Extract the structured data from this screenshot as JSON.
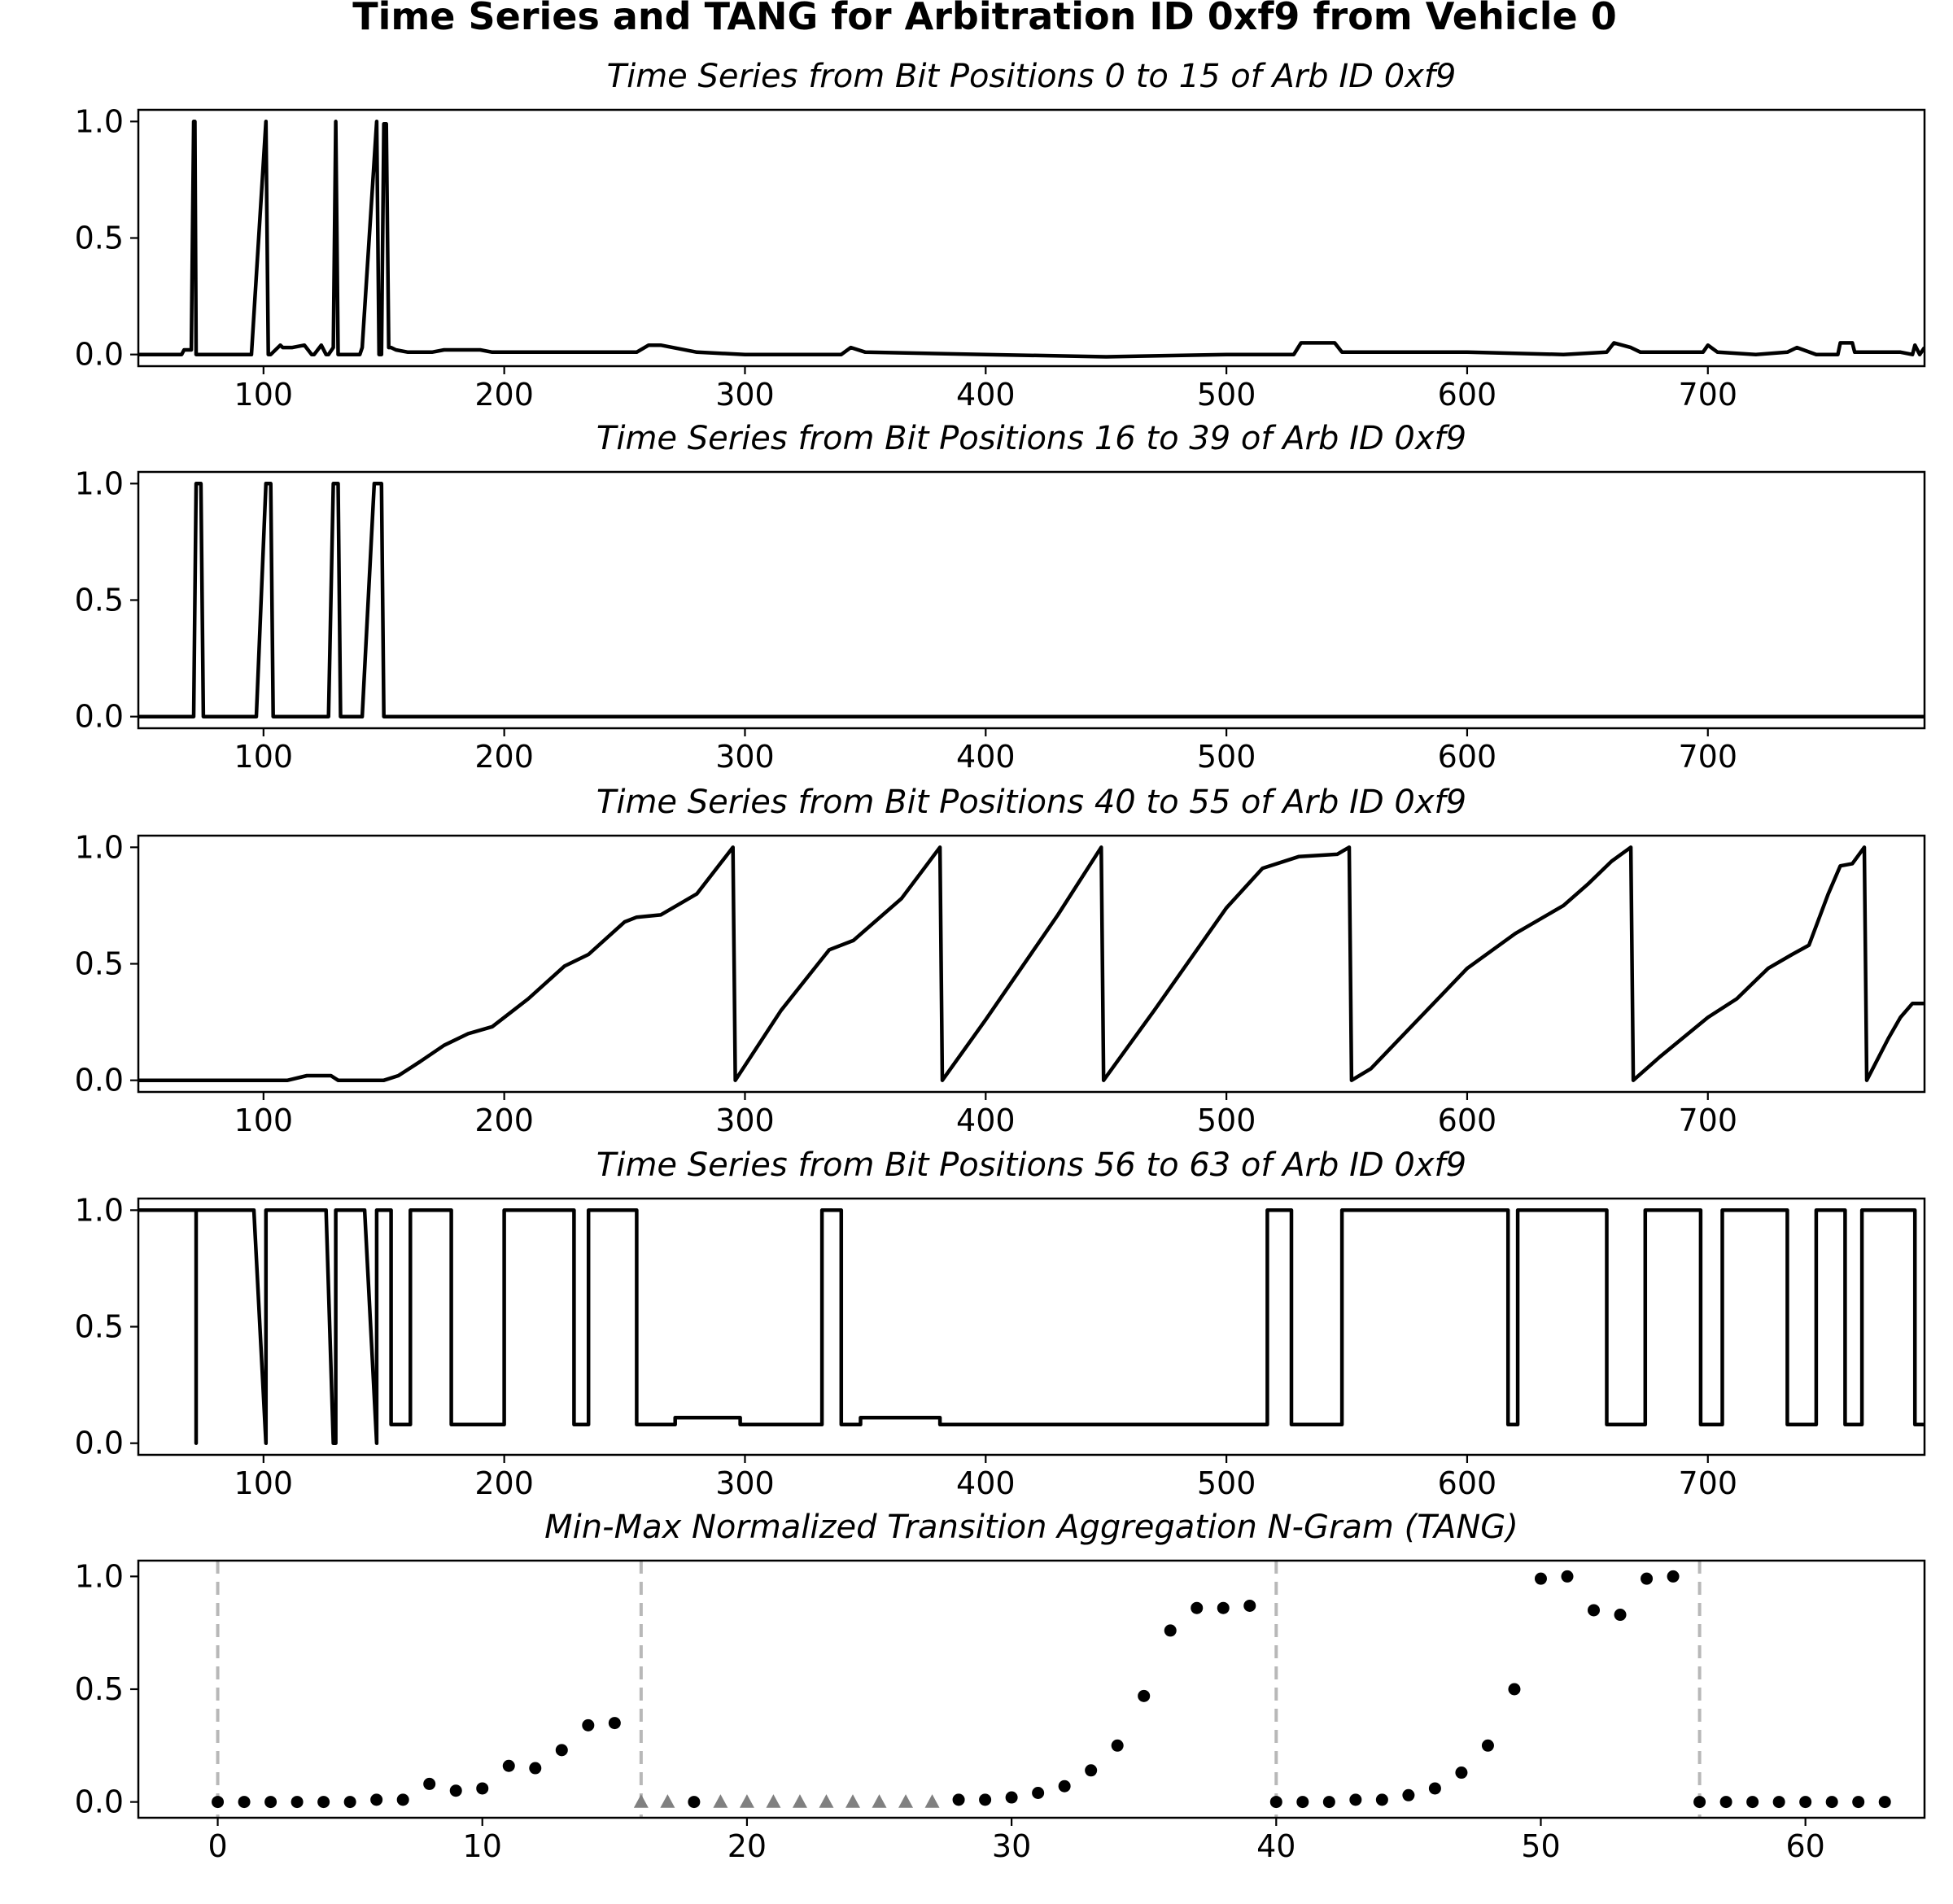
{
  "figure_title": "Time Series and TANG for Arbitration ID 0xf9 from Vehicle 0",
  "colors": {
    "line": "#000000",
    "dot": "#000000",
    "triangle": "#808080",
    "divider": "#b8b8b8"
  },
  "chart_data": [
    {
      "type": "line",
      "title": "Time Series from Bit Positions 0 to 15 of Arb ID 0xf9",
      "xlim": [
        48,
        790
      ],
      "ylim": [
        -0.05,
        1.05
      ],
      "xticks": [
        100,
        200,
        300,
        400,
        500,
        600,
        700
      ],
      "yticks": [
        0.0,
        0.5,
        1.0
      ],
      "x": [
        48,
        66,
        67,
        70,
        71,
        71.5,
        72,
        73,
        95,
        101,
        102,
        103,
        107,
        108,
        112,
        117,
        120,
        121,
        124,
        126,
        127,
        129,
        130,
        131,
        132,
        140,
        141,
        147,
        148,
        149,
        150,
        151,
        152,
        153,
        155,
        160,
        170,
        175,
        190,
        195,
        200,
        230,
        240,
        255,
        260,
        265,
        280,
        300,
        340,
        344,
        350,
        400,
        450,
        500,
        528,
        531,
        545,
        548,
        560,
        600,
        640,
        658,
        661,
        668,
        672,
        698,
        700,
        704,
        720,
        733,
        737,
        745,
        754,
        755,
        760,
        761,
        780,
        785,
        786,
        788,
        790
      ],
      "y": [
        0.0,
        0.0,
        0.02,
        0.02,
        1.0,
        1.0,
        0.0,
        0.0,
        0.0,
        1.0,
        0.0,
        0.0,
        0.04,
        0.03,
        0.03,
        0.04,
        0.0,
        0.0,
        0.04,
        0.0,
        0.0,
        0.03,
        1.0,
        0.0,
        0.0,
        0.0,
        0.03,
        1.0,
        0.0,
        0.0,
        0.99,
        0.99,
        0.03,
        0.03,
        0.02,
        0.01,
        0.01,
        0.02,
        0.02,
        0.01,
        0.01,
        0.01,
        0.01,
        0.01,
        0.04,
        0.04,
        0.01,
        0.0,
        0.0,
        0.03,
        0.01,
        0.0,
        -0.01,
        0.0,
        0.0,
        0.05,
        0.05,
        0.01,
        0.01,
        0.01,
        0.0,
        0.01,
        0.05,
        0.03,
        0.01,
        0.01,
        0.04,
        0.01,
        0.0,
        0.01,
        0.03,
        0.0,
        0.0,
        0.05,
        0.05,
        0.01,
        0.01,
        0.0,
        0.04,
        0.0,
        0.03
      ]
    },
    {
      "type": "line",
      "title": "Time Series from Bit Positions 16 to 39 of Arb ID 0xf9",
      "xlim": [
        48,
        790
      ],
      "ylim": [
        -0.05,
        1.05
      ],
      "xticks": [
        100,
        200,
        300,
        400,
        500,
        600,
        700
      ],
      "yticks": [
        0.0,
        0.5,
        1.0
      ],
      "x": [
        48,
        71,
        72,
        74,
        75,
        97,
        101,
        103,
        104,
        127,
        129,
        131,
        132,
        141,
        146,
        149,
        150,
        790
      ],
      "y": [
        0.0,
        0.0,
        1.0,
        1.0,
        0.0,
        0.0,
        1.0,
        1.0,
        0.0,
        0.0,
        1.0,
        1.0,
        0.0,
        0.0,
        1.0,
        1.0,
        0.0,
        0.0
      ]
    },
    {
      "type": "line",
      "title": "Time Series from Bit Positions 40 to 55 of Arb ID 0xf9",
      "xlim": [
        48,
        790
      ],
      "ylim": [
        -0.05,
        1.05
      ],
      "xticks": [
        100,
        200,
        300,
        400,
        500,
        600,
        700
      ],
      "yticks": [
        0.0,
        0.5,
        1.0
      ],
      "x": [
        48,
        110,
        118,
        128,
        131,
        150,
        156,
        165,
        175,
        185,
        195,
        210,
        225,
        235,
        250,
        255,
        265,
        280,
        295,
        296,
        315,
        335,
        345,
        365,
        381,
        382,
        400,
        430,
        448,
        449,
        470,
        500,
        515,
        530,
        546,
        551,
        552,
        560,
        600,
        620,
        640,
        650,
        660,
        668,
        669,
        680,
        700,
        712,
        725,
        735,
        742,
        750,
        755,
        760,
        765,
        766,
        775,
        780,
        785,
        790
      ],
      "y": [
        0.0,
        0.0,
        0.02,
        0.02,
        0.0,
        0.0,
        0.02,
        0.08,
        0.15,
        0.2,
        0.23,
        0.35,
        0.49,
        0.54,
        0.68,
        0.7,
        0.71,
        0.8,
        1.0,
        0.0,
        0.3,
        0.56,
        0.6,
        0.78,
        1.0,
        0.0,
        0.26,
        0.71,
        1.0,
        0.0,
        0.3,
        0.74,
        0.91,
        0.96,
        0.97,
        1.0,
        0.0,
        0.05,
        0.48,
        0.63,
        0.75,
        0.84,
        0.94,
        1.0,
        0.0,
        0.1,
        0.27,
        0.35,
        0.48,
        0.54,
        0.58,
        0.8,
        0.92,
        0.93,
        1.0,
        0.0,
        0.18,
        0.27,
        0.33,
        0.33
      ]
    },
    {
      "type": "line",
      "title": "Time Series from Bit Positions 56 to 63 of Arb ID 0xf9",
      "xlim": [
        48,
        790
      ],
      "ylim": [
        -0.05,
        1.05
      ],
      "xticks": [
        100,
        200,
        300,
        400,
        500,
        600,
        700
      ],
      "yticks": [
        0.0,
        0.5,
        1.0
      ],
      "x": [
        48,
        72,
        72,
        72,
        96,
        101,
        101,
        126,
        129,
        130,
        130,
        133,
        142,
        147,
        147,
        153,
        153,
        161,
        161,
        178,
        178,
        200,
        200,
        229,
        229,
        235,
        235,
        255,
        255,
        271,
        271,
        298,
        298,
        332,
        332,
        340,
        340,
        348,
        348,
        381,
        381,
        517,
        517,
        527,
        527,
        548,
        548,
        617,
        617,
        621,
        621,
        658,
        658,
        674,
        674,
        697,
        697,
        706,
        706,
        733,
        733,
        745,
        745,
        757,
        757,
        764,
        764,
        786,
        786,
        790
      ],
      "y": [
        1.0,
        1.0,
        0.0,
        1.0,
        1.0,
        0.0,
        1.0,
        1.0,
        0.0,
        0.0,
        1.0,
        1.0,
        1.0,
        0.0,
        1.0,
        1.0,
        0.08,
        0.08,
        1.0,
        1.0,
        0.08,
        0.08,
        1.0,
        1.0,
        0.08,
        0.08,
        1.0,
        1.0,
        0.08,
        0.08,
        0.11,
        0.11,
        0.08,
        0.08,
        1.0,
        1.0,
        0.08,
        0.08,
        0.11,
        0.11,
        0.08,
        0.08,
        1.0,
        1.0,
        0.08,
        0.08,
        1.0,
        1.0,
        0.08,
        0.08,
        1.0,
        1.0,
        0.08,
        0.08,
        1.0,
        1.0,
        0.08,
        0.08,
        1.0,
        1.0,
        0.08,
        0.08,
        1.0,
        1.0,
        0.08,
        0.08,
        1.0,
        1.0,
        0.08,
        0.08
      ]
    },
    {
      "type": "scatter",
      "title": "Min-Max Normalized Transition Aggregation N-Gram (TANG)",
      "xlim": [
        -3,
        64.5
      ],
      "ylim": [
        -0.07,
        1.07
      ],
      "xticks": [
        0,
        10,
        20,
        30,
        40,
        50,
        60
      ],
      "yticks": [
        0.0,
        0.5,
        1.0
      ],
      "dividers": [
        0,
        16,
        40,
        56
      ],
      "dots": {
        "x": [
          0,
          1,
          2,
          3,
          4,
          5,
          6,
          7,
          8,
          9,
          10,
          11,
          12,
          13,
          14,
          15,
          18,
          28,
          29,
          30,
          31,
          32,
          33,
          34,
          35,
          36,
          37,
          38,
          39,
          40,
          41,
          42,
          43,
          44,
          45,
          46,
          47,
          48,
          49,
          50,
          51,
          52,
          53,
          54,
          55,
          56,
          57,
          58,
          59,
          60,
          61,
          62,
          63
        ],
        "y": [
          0.0,
          0.0,
          0.0,
          0.0,
          0.0,
          0.0,
          0.01,
          0.01,
          0.08,
          0.05,
          0.06,
          0.16,
          0.15,
          0.23,
          0.34,
          0.35,
          0.0,
          0.01,
          0.01,
          0.02,
          0.04,
          0.07,
          0.14,
          0.25,
          0.47,
          0.76,
          0.86,
          0.86,
          0.87,
          0.0,
          0.0,
          0.0,
          0.01,
          0.01,
          0.03,
          0.06,
          0.13,
          0.25,
          0.5,
          0.99,
          1.0,
          0.85,
          0.83,
          0.99,
          1.0,
          0.0,
          0.0,
          0.0,
          0.0,
          0.0,
          0.0,
          0.0,
          0.0
        ]
      },
      "triangles": {
        "x": [
          16,
          17,
          19,
          20,
          21,
          22,
          23,
          24,
          25,
          26,
          27
        ],
        "y": [
          0.0,
          0.0,
          0.0,
          0.0,
          0.0,
          0.0,
          0.0,
          0.0,
          0.0,
          0.0,
          0.0
        ]
      }
    }
  ]
}
